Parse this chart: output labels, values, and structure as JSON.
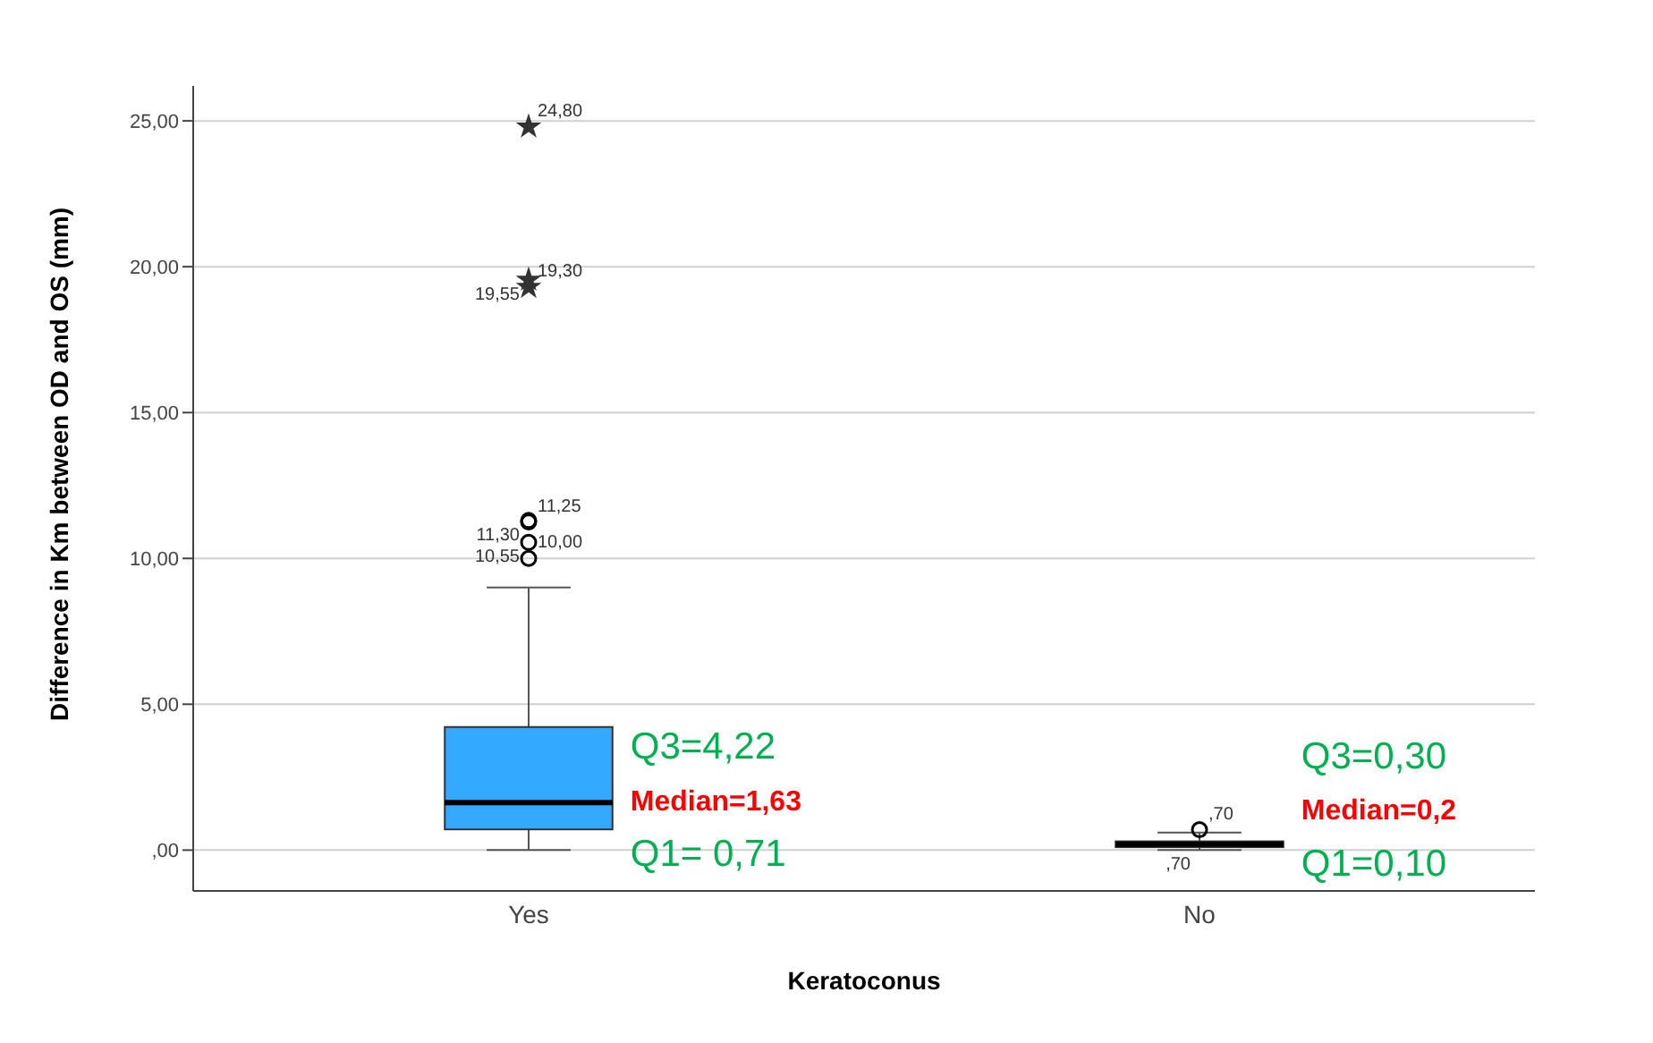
{
  "chart_data": {
    "type": "box",
    "xlabel": "Keratoconus",
    "ylabel": "Difference in Km between OD and OS (mm)",
    "categories": [
      "Yes",
      "No"
    ],
    "ylim": [
      -1.4,
      26.2
    ],
    "yticks": [
      {
        "value": 0,
        "label": ",00"
      },
      {
        "value": 5,
        "label": "5,00"
      },
      {
        "value": 10,
        "label": "10,00"
      },
      {
        "value": 15,
        "label": "15,00"
      },
      {
        "value": 20,
        "label": "20,00"
      },
      {
        "value": 25,
        "label": "25,00"
      }
    ],
    "grid": "y",
    "series": [
      {
        "type": "box",
        "color": "#33aaff",
        "boxes": [
          {
            "low": 0,
            "q1": 0.71,
            "median": 1.63,
            "q3": 4.22,
            "high": 9.0
          },
          {
            "low": 0.0,
            "q1": 0.1,
            "median": 0.2,
            "q3": 0.3,
            "high": 0.6
          }
        ]
      },
      {
        "type": "scatter",
        "marker": "circle",
        "color": "#000000",
        "x": [
          "Yes",
          "Yes",
          "Yes",
          "Yes",
          "No"
        ],
        "values": [
          10.0,
          10.55,
          11.25,
          11.3,
          0.7
        ]
      },
      {
        "type": "scatter",
        "marker": "star",
        "color": "#333333",
        "x": [
          "Yes",
          "Yes",
          "Yes"
        ],
        "values": [
          19.3,
          19.55,
          24.8
        ]
      }
    ],
    "annotations": [
      "Q3=4,22",
      "Median=1,63",
      "Q1= 0,71",
      "Q3=0,30",
      "Median=0,2",
      "Q1=0,10",
      {
        "text": "24,80",
        "x": "Yes",
        "y": 24.8
      },
      {
        "text": "19,55",
        "x": "Yes",
        "y": 19.55
      },
      {
        "text": "19,30",
        "x": "Yes",
        "y": 19.3
      },
      {
        "text": "11,30",
        "x": "Yes",
        "y": 11.3
      },
      {
        "text": "11,25",
        "x": "Yes",
        "y": 11.25
      },
      {
        "text": "10,55",
        "x": "Yes",
        "y": 10.55
      },
      {
        "text": "10,00",
        "x": "Yes",
        "y": 10.0
      },
      {
        "text": ",70",
        "x": "No",
        "y": 0.7
      },
      {
        "text": ",70",
        "x": "No",
        "y": 0.0
      }
    ]
  }
}
